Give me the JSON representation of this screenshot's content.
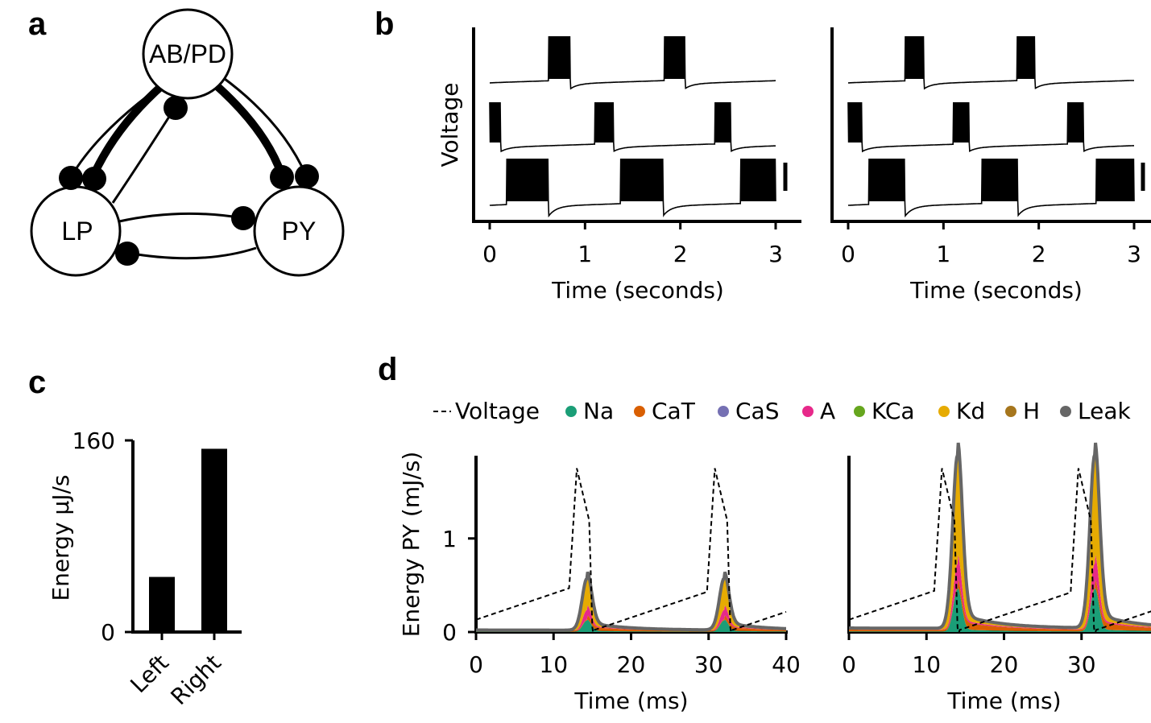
{
  "panels": {
    "a": "a",
    "b": "b",
    "c": "c",
    "d": "d"
  },
  "colors": {
    "Na": "#1b9e77",
    "CaT": "#d95f02",
    "CaS": "#7570b3",
    "A": "#e7298a",
    "KCa": "#66a61e",
    "Kd": "#e6ab02",
    "H": "#a6761d",
    "Leak": "#666666"
  },
  "chart_data": [
    {
      "panel": "a",
      "type": "diagram",
      "nodes": [
        "AB/PD",
        "LP",
        "PY"
      ]
    },
    {
      "panel": "b",
      "type": "line",
      "ylabel": "Voltage",
      "xlabel": "Time (seconds)",
      "xticks": [
        "0",
        "1",
        "2",
        "3"
      ],
      "xlim": [
        0,
        3
      ],
      "subplots": [
        {
          "traces": [
            {
              "bursts": [
                [
                  0.62,
                  0.85
                ],
                [
                  1.83,
                  2.05
                ]
              ]
            },
            {
              "bursts": [
                [
                  0.0,
                  0.12
                ],
                [
                  1.1,
                  1.3
                ],
                [
                  2.36,
                  2.53
                ]
              ]
            },
            {
              "bursts": [
                [
                  0.18,
                  0.62
                ],
                [
                  1.37,
                  1.82
                ],
                [
                  2.63,
                  3.0
                ]
              ]
            }
          ]
        },
        {
          "traces": [
            {
              "bursts": [
                [
                  0.6,
                  0.8
                ],
                [
                  1.77,
                  1.96
                ]
              ]
            },
            {
              "bursts": [
                [
                  0.0,
                  0.15
                ],
                [
                  1.1,
                  1.27
                ],
                [
                  2.3,
                  2.47
                ]
              ]
            },
            {
              "bursts": [
                [
                  0.22,
                  0.6
                ],
                [
                  1.4,
                  1.78
                ],
                [
                  2.6,
                  3.0
                ]
              ]
            }
          ]
        }
      ]
    },
    {
      "panel": "c",
      "type": "bar",
      "categories": [
        "Left",
        "Right"
      ],
      "values": [
        46,
        153
      ],
      "ylabel": "Energy μJ/s",
      "ylim": [
        0,
        160
      ],
      "yticks": [
        "0",
        "160"
      ]
    },
    {
      "panel": "d",
      "type": "area",
      "ylabel": "Energy PY (mJ/s)",
      "xlabel": "Time (ms)",
      "xlim": [
        0,
        40
      ],
      "ylim": [
        0,
        1.85
      ],
      "xticks": [
        "0",
        "10",
        "20",
        "30",
        "40"
      ],
      "yticks": [
        "0",
        "1"
      ],
      "legend": [
        "Voltage",
        "Na",
        "CaT",
        "CaS",
        "A",
        "KCa",
        "Kd",
        "H",
        "Leak"
      ],
      "legend_placement": "top",
      "subplots": [
        {
          "spikes_ms": [
            14.3,
            32.0
          ],
          "peak_total": 0.55,
          "spike_components": {
            "Na": 0.12,
            "A": 0.1,
            "Kd": 0.3,
            "Leak": 0.03
          },
          "baseline_total": 0.1,
          "voltage_peaks_ms": [
            13.0,
            30.8
          ]
        },
        {
          "spikes_ms": [
            14.0,
            31.7
          ],
          "peak_total": 1.85,
          "spike_components": {
            "Na": 0.45,
            "A": 0.25,
            "Kd": 1.08,
            "Leak": 0.07
          },
          "baseline_total": 0.2,
          "voltage_peaks_ms": [
            12.0,
            29.6
          ]
        }
      ]
    }
  ]
}
